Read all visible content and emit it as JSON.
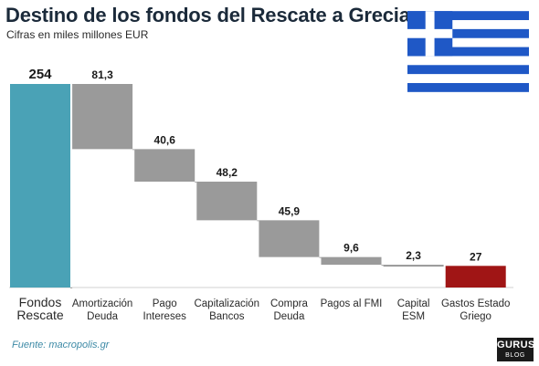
{
  "title": "Destino de los fondos del Rescate a Grecia",
  "subtitle": "Cifras en miles millones EUR",
  "source": "Fuente: macropolis.gr",
  "logo": {
    "main": "GURUS",
    "sub": "BLOG"
  },
  "colors": {
    "total": "#4aa2b6",
    "step": "#9a9a9a",
    "remainder": "#a01515",
    "flag_blue": "#1f58c6",
    "connector": "#a8a8a8"
  },
  "chart_data": {
    "type": "bar",
    "subtype": "waterfall",
    "title": "Destino de los fondos del Rescate a Grecia",
    "subtitle": "Cifras en miles millones EUR",
    "categories": [
      [
        "Fondos",
        "Rescate"
      ],
      [
        "Amortización",
        "Deuda"
      ],
      [
        "Pago",
        "Intereses"
      ],
      [
        "Capitalización",
        "Bancos"
      ],
      [
        "Compra",
        "Deuda"
      ],
      [
        "Pagos al FMI"
      ],
      [
        "Capital",
        "ESM"
      ],
      [
        "Gastos Estado",
        "Griego"
      ]
    ],
    "values": [
      254,
      81.3,
      40.6,
      48.2,
      45.9,
      9.6,
      2.3,
      27
    ],
    "labels": [
      "254",
      "81,3",
      "40,6",
      "48,2",
      "45,9",
      "9,6",
      "2,3",
      "27"
    ],
    "kinds": [
      "total",
      "step",
      "step",
      "step",
      "step",
      "step",
      "step",
      "remainder"
    ],
    "ylim": [
      0,
      254
    ],
    "grid": false,
    "legend": false
  }
}
